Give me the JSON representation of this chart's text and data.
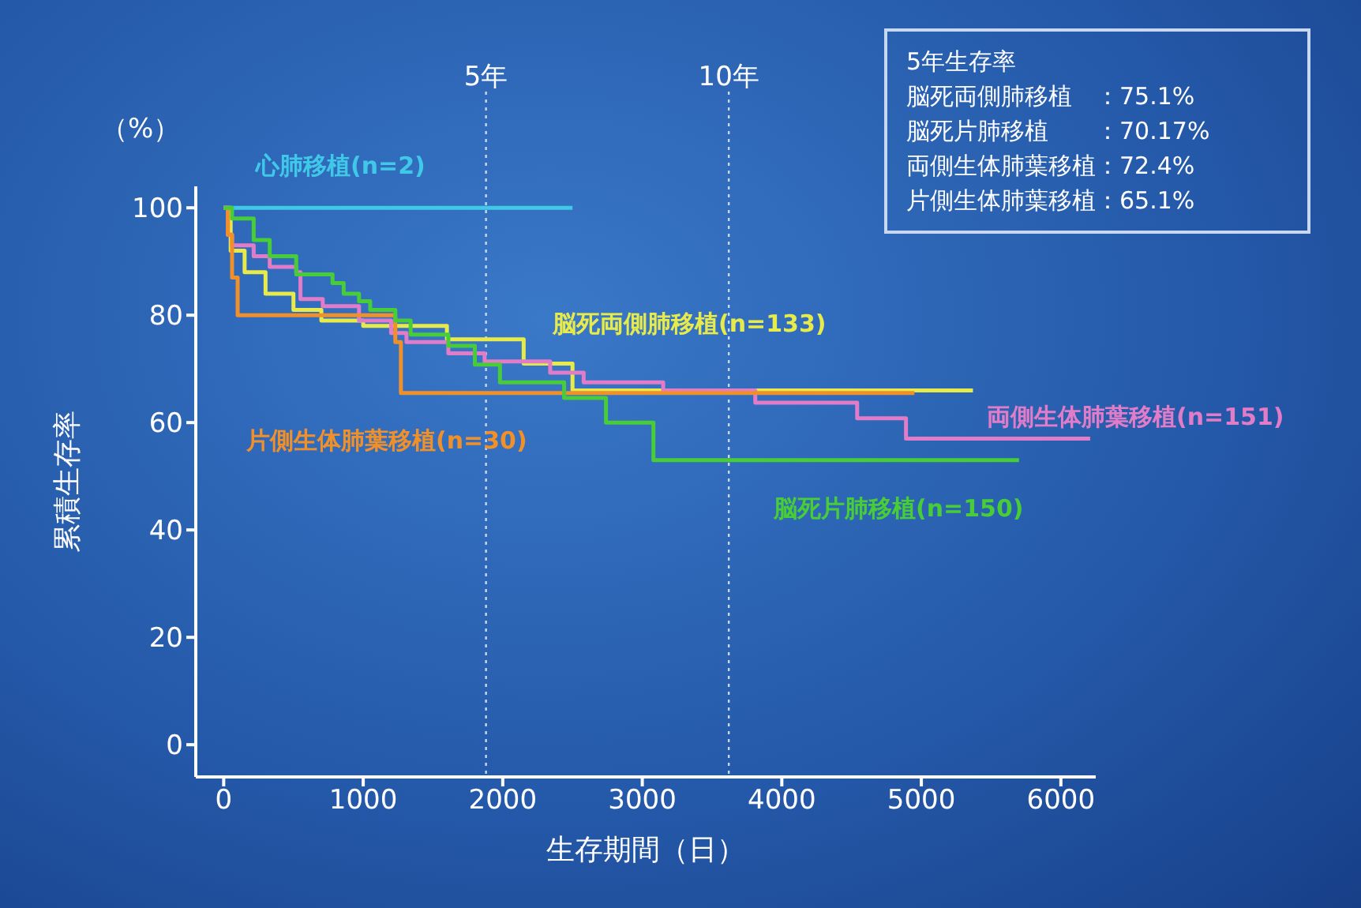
{
  "chart_data": {
    "type": "step",
    "xlabel": "生存期間（日）",
    "ylabel": "累積生存率",
    "xlim": [
      -200,
      6250
    ],
    "xticks": [
      0,
      1000,
      2000,
      3000,
      4000,
      5000,
      6000
    ],
    "ylim": [
      -6,
      104
    ],
    "yticks": [
      0,
      20,
      40,
      60,
      80,
      100
    ],
    "marker": "none",
    "ref_lines": [
      {
        "axis": "x",
        "value": 1880,
        "label": "5年",
        "color": "#c8d8f0",
        "line_style": "dotted"
      },
      {
        "axis": "x",
        "value": 3620,
        "label": "10年",
        "color": "#c8d8f0",
        "line_style": "dotted"
      }
    ],
    "annotations": [
      "（%）",
      "5年生存率",
      "脳死両側肺移植　：75.1%",
      "脳死片肺移植　　：70.17%",
      "両側生体肺葉移植：72.4%",
      "片側生体肺葉移植：65.1%"
    ],
    "series": [
      {
        "name": "心肺移植(n=2)",
        "color": "#40c8e8",
        "x": [
          0,
          2500
        ],
        "values": [
          100,
          100
        ]
      },
      {
        "name": "脳死両側肺移植(n=133)",
        "color": "#e6ea4a",
        "x": [
          0,
          50,
          150,
          300,
          500,
          700,
          1000,
          1600,
          2150,
          2500,
          5370
        ],
        "values": [
          100,
          92,
          88,
          84,
          81,
          79,
          78,
          75.5,
          71,
          66,
          66
        ]
      },
      {
        "name": "両側生体肺葉移植(n=151)",
        "color": "#e07cc8",
        "x": [
          0,
          30,
          60,
          215,
          330,
          520,
          550,
          710,
          970,
          1200,
          1310,
          1610,
          1870,
          2340,
          2580,
          3150,
          3810,
          4540,
          4890,
          6210
        ],
        "values": [
          100,
          95,
          93,
          91,
          89,
          88,
          83,
          81.7,
          79,
          76.7,
          75,
          72.9,
          71.4,
          69.3,
          67.5,
          66,
          63.7,
          60.8,
          57,
          57
        ]
      },
      {
        "name": "片側生体肺葉移植(n=30)",
        "color": "#f0902a",
        "x": [
          0,
          30,
          60,
          100,
          1230,
          1270,
          4950
        ],
        "values": [
          100,
          95,
          87,
          80,
          75,
          65.5,
          65.5
        ]
      },
      {
        "name": "脳死片肺移植(n=150)",
        "color": "#48cc38",
        "x": [
          0,
          60,
          215,
          330,
          520,
          780,
          860,
          970,
          1050,
          1230,
          1340,
          1610,
          1800,
          1980,
          2440,
          2740,
          3080,
          5700
        ],
        "values": [
          100,
          98,
          94,
          91,
          87.6,
          86,
          84,
          82.6,
          81,
          79,
          76.4,
          74.3,
          70.8,
          67.5,
          64.6,
          60,
          53,
          53
        ]
      }
    ]
  }
}
